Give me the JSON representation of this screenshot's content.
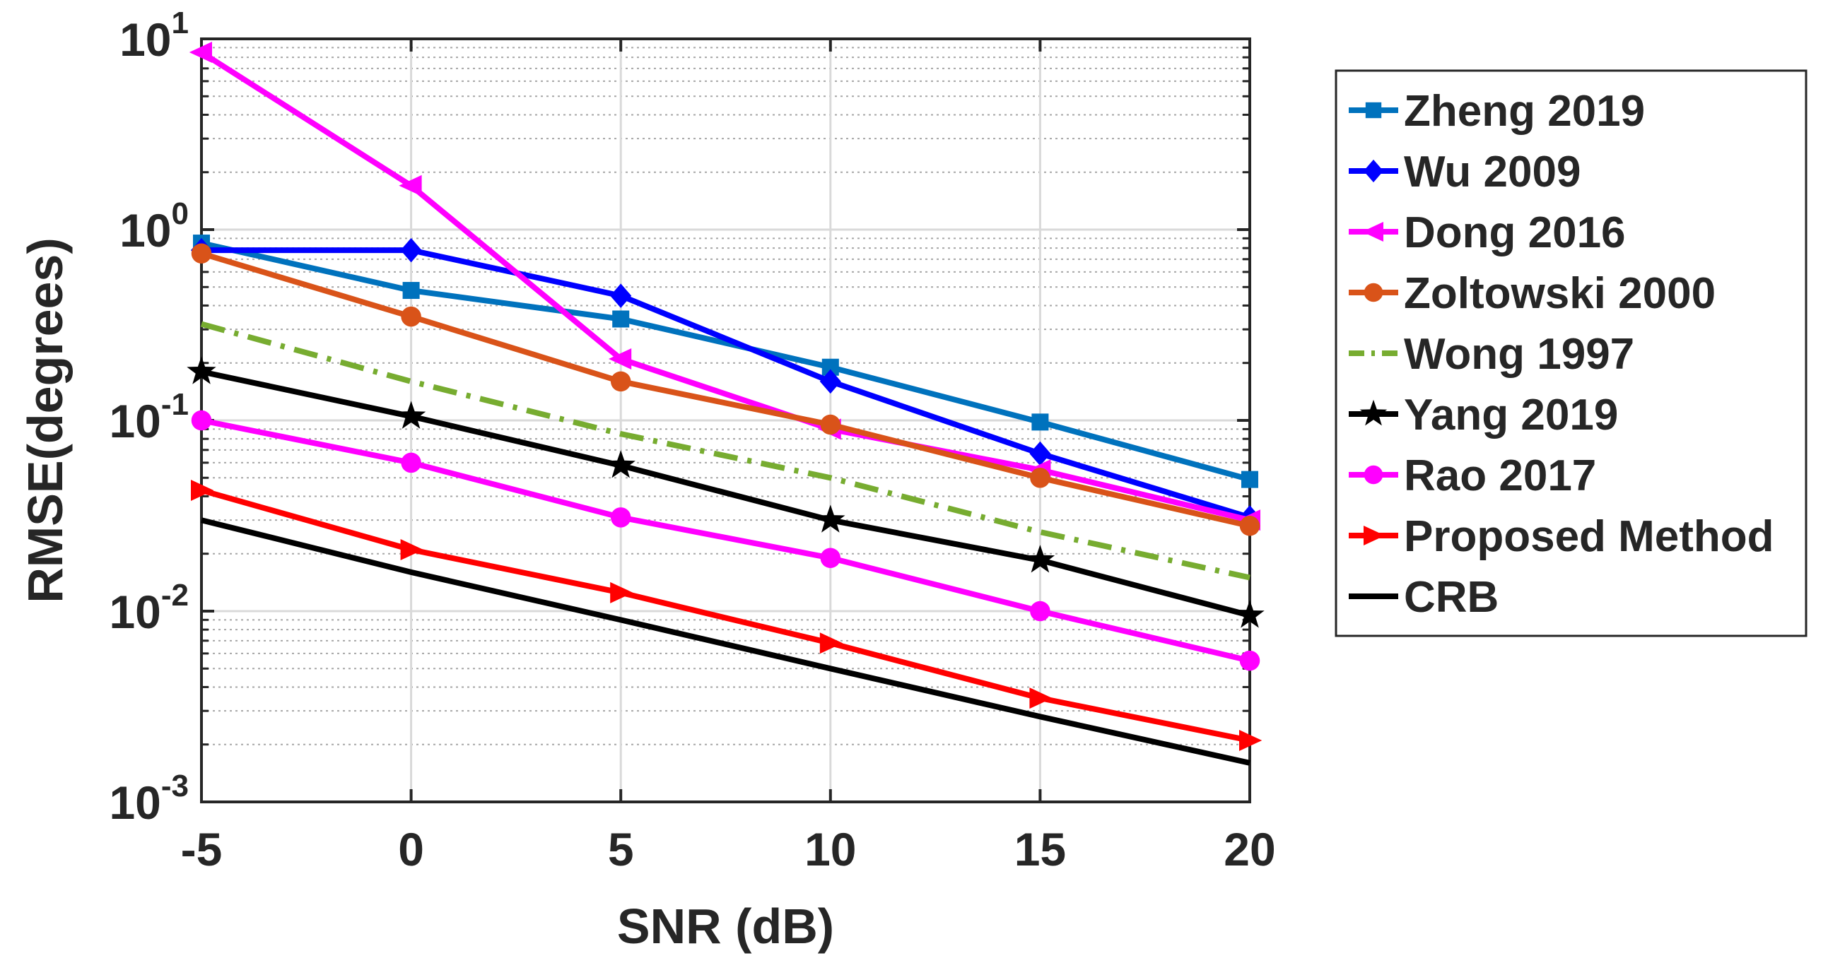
{
  "chart_data": {
    "type": "line",
    "title": "",
    "xlabel": "SNR (dB)",
    "ylabel": "RMSE(degrees)",
    "yscale": "log",
    "xlim": [
      -5,
      20
    ],
    "ylim": [
      0.001,
      10
    ],
    "grid": true,
    "x": [
      -5,
      0,
      5,
      10,
      15,
      20
    ],
    "x_tick_labels": [
      "-5",
      "0",
      "5",
      "10",
      "15",
      "20"
    ],
    "y_ticks": [
      {
        "value": 10,
        "base": "10",
        "exp": "1"
      },
      {
        "value": 1,
        "base": "10",
        "exp": "0"
      },
      {
        "value": 0.1,
        "base": "10",
        "exp": "-1"
      },
      {
        "value": 0.01,
        "base": "10",
        "exp": "-2"
      },
      {
        "value": 0.001,
        "base": "10",
        "exp": "-3"
      }
    ],
    "legend_position": "outside-right",
    "series": [
      {
        "name": "Zheng 2019",
        "color": "#0072BD",
        "marker": "square",
        "dash": "solid",
        "values": [
          0.85,
          0.48,
          0.34,
          0.19,
          0.098,
          0.049
        ]
      },
      {
        "name": "Wu 2009",
        "color": "#0000FF",
        "marker": "diamond",
        "dash": "solid",
        "values": [
          0.78,
          0.78,
          0.45,
          0.16,
          0.067,
          0.031
        ]
      },
      {
        "name": "Dong 2016",
        "color": "#FF00FF",
        "marker": "triangle-left",
        "dash": "solid",
        "values": [
          8.5,
          1.7,
          0.21,
          0.09,
          0.055,
          0.03
        ]
      },
      {
        "name": "Zoltowski 2000",
        "color": "#D95319",
        "marker": "circle",
        "dash": "solid",
        "values": [
          0.75,
          0.35,
          0.16,
          0.095,
          0.05,
          0.028
        ]
      },
      {
        "name": "Wong 1997",
        "color": "#77AC30",
        "marker": "none",
        "dash": "dashdot",
        "values": [
          0.32,
          0.16,
          0.085,
          0.05,
          0.026,
          0.015
        ]
      },
      {
        "name": "Yang 2019",
        "color": "#000000",
        "marker": "star",
        "dash": "solid",
        "values": [
          0.18,
          0.105,
          0.058,
          0.03,
          0.0185,
          0.0095
        ]
      },
      {
        "name": "Rao 2017",
        "color": "#FF00FF",
        "marker": "circle",
        "dash": "solid",
        "values": [
          0.1,
          0.06,
          0.031,
          0.019,
          0.01,
          0.0055
        ]
      },
      {
        "name": "Proposed Method",
        "color": "#FF0000",
        "marker": "triangle-right",
        "dash": "solid",
        "values": [
          0.043,
          0.021,
          0.0125,
          0.0068,
          0.0035,
          0.0021
        ]
      },
      {
        "name": "CRB",
        "color": "#000000",
        "marker": "none",
        "dash": "solid",
        "values": [
          0.03,
          0.016,
          0.009,
          0.005,
          0.0028,
          0.0016
        ]
      }
    ]
  }
}
